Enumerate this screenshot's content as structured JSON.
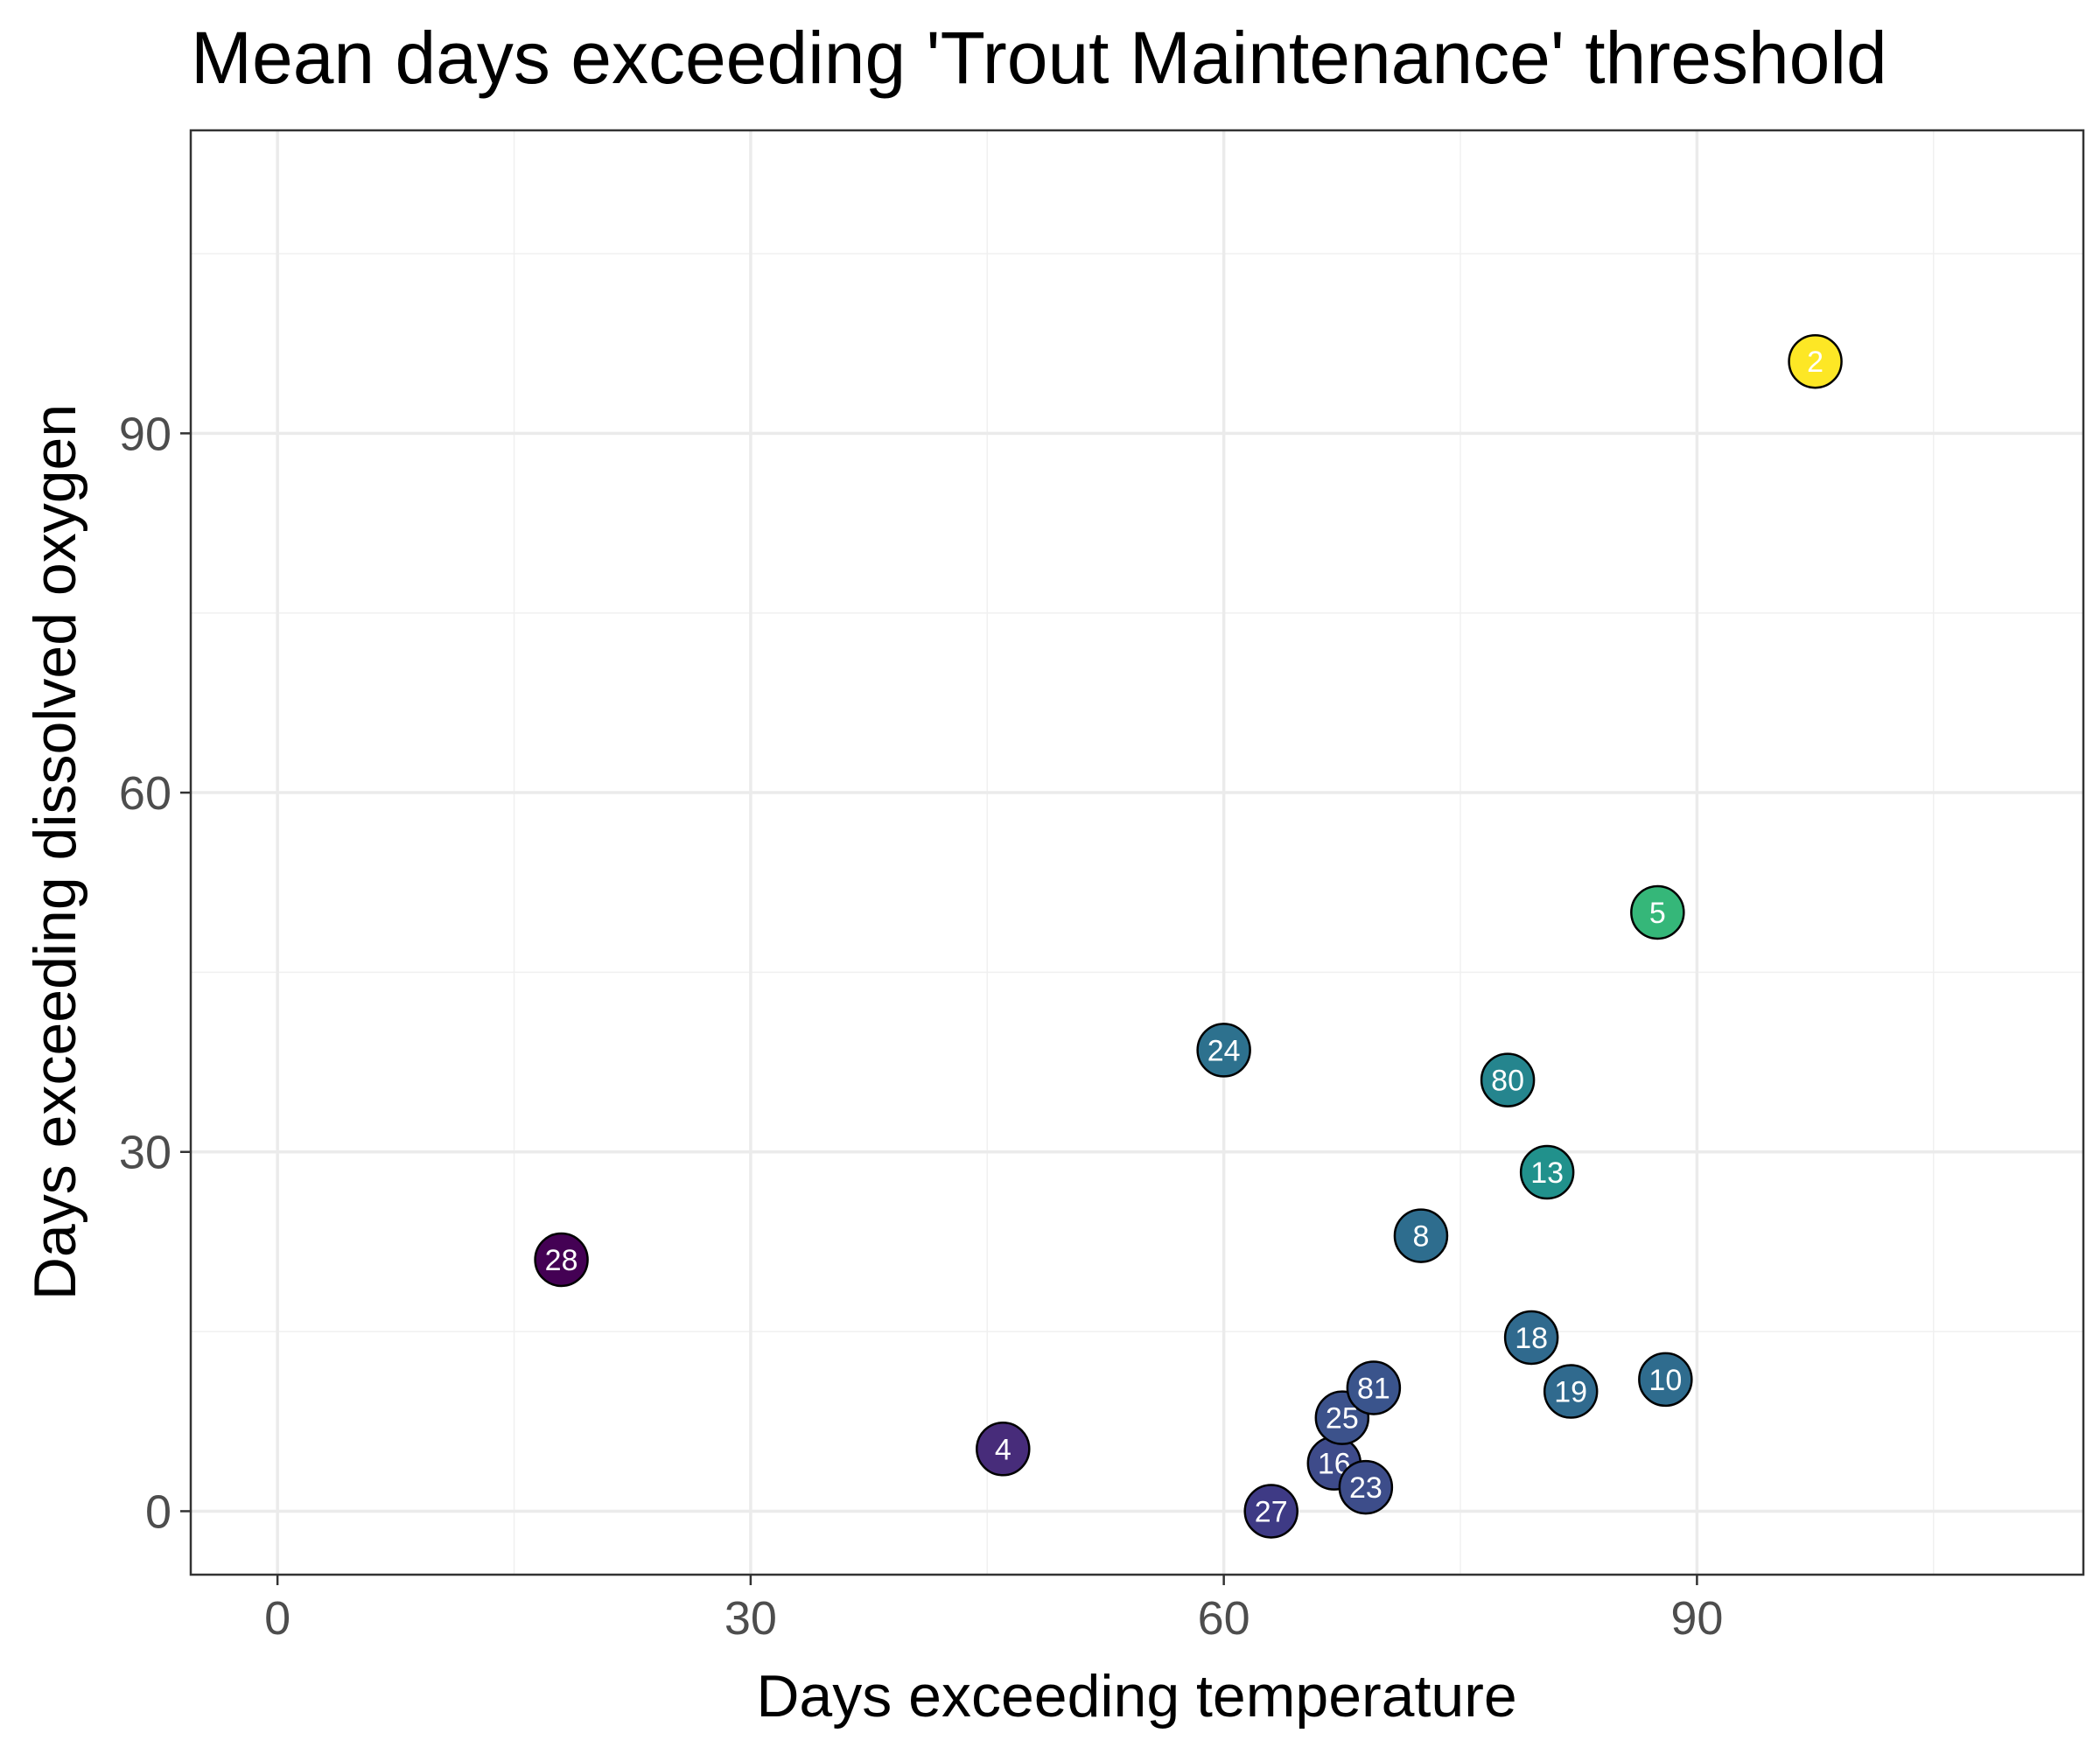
{
  "chart_data": {
    "type": "scatter",
    "title": "Mean days exceeding 'Trout Maintenance' threshold",
    "xlabel": "Days exceeding temperature",
    "ylabel": "Days exceeding dissolved oxygen",
    "xlim": [
      -5.5,
      114.5
    ],
    "ylim": [
      -5.3,
      115.3
    ],
    "xticks": [
      0,
      30,
      60,
      90
    ],
    "yticks": [
      0,
      30,
      60,
      90
    ],
    "x_minor_gridlines": [
      15,
      45,
      75,
      105
    ],
    "y_minor_gridlines": [
      15,
      45,
      75,
      105
    ],
    "grid": true,
    "legend": "none",
    "point_stroke_color": "#000000",
    "label_color": "#ffffff",
    "points": [
      {
        "label": "28",
        "x": 18.0,
        "y": 21.0,
        "color": "#440154"
      },
      {
        "label": "4",
        "x": 46.0,
        "y": 5.2,
        "color": "#472c7a"
      },
      {
        "label": "27",
        "x": 63.0,
        "y": 0.0,
        "color": "#3e3a85"
      },
      {
        "label": "16",
        "x": 67.0,
        "y": 4.0,
        "color": "#3e4b8a"
      },
      {
        "label": "23",
        "x": 69.0,
        "y": 2.0,
        "color": "#3d4d8a"
      },
      {
        "label": "25",
        "x": 67.5,
        "y": 7.8,
        "color": "#3c528b"
      },
      {
        "label": "81",
        "x": 69.5,
        "y": 10.3,
        "color": "#3a548c"
      },
      {
        "label": "24",
        "x": 60.0,
        "y": 38.5,
        "color": "#2d718e"
      },
      {
        "label": "8",
        "x": 72.5,
        "y": 23.0,
        "color": "#2e6d8e"
      },
      {
        "label": "18",
        "x": 79.5,
        "y": 14.5,
        "color": "#306a8e"
      },
      {
        "label": "19",
        "x": 82.0,
        "y": 10.0,
        "color": "#306a8e"
      },
      {
        "label": "10",
        "x": 88.0,
        "y": 11.0,
        "color": "#2f6c8e"
      },
      {
        "label": "13",
        "x": 80.5,
        "y": 28.3,
        "color": "#21918c"
      },
      {
        "label": "80",
        "x": 78.0,
        "y": 36.0,
        "color": "#25858e"
      },
      {
        "label": "5",
        "x": 87.5,
        "y": 50.0,
        "color": "#35b779"
      },
      {
        "label": "2",
        "x": 97.5,
        "y": 96.0,
        "color": "#fde725"
      }
    ]
  }
}
